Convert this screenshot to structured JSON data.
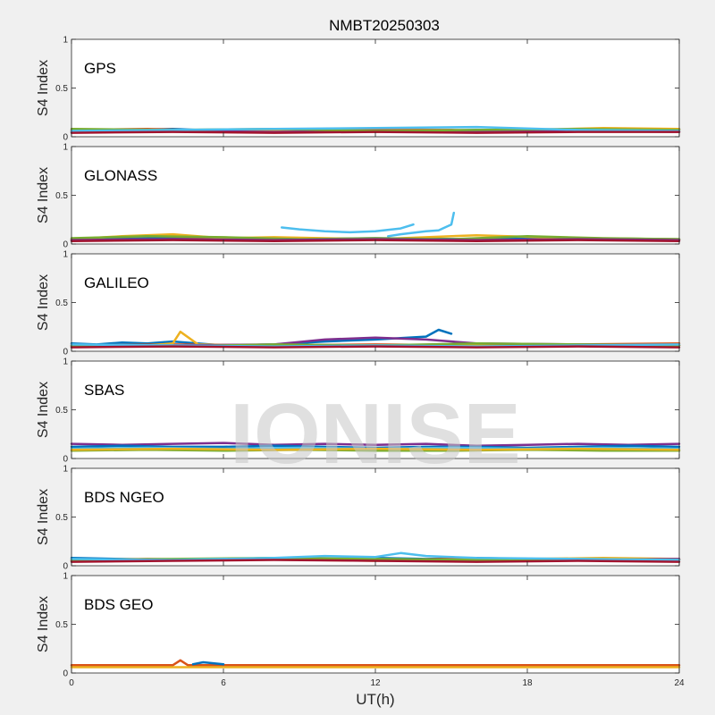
{
  "figure": {
    "title": "NMBT20250303",
    "xlabel": "UT(h)",
    "watermark": "IONISE"
  },
  "chart_data": [
    {
      "type": "line",
      "panel_label": "GPS",
      "ylabel": "S4 Index",
      "xlim": [
        0,
        24
      ],
      "ylim": [
        0,
        1
      ],
      "xticks": [
        0,
        6,
        12,
        18,
        24
      ],
      "yticks": [
        0,
        0.5,
        1
      ],
      "x_tick_labels_shown": false,
      "series": [
        {
          "color": "#0072bd",
          "x": [
            0,
            2,
            4,
            6,
            8,
            10,
            12,
            14,
            16,
            18,
            20,
            22,
            24
          ],
          "y": [
            0.06,
            0.07,
            0.08,
            0.06,
            0.07,
            0.06,
            0.07,
            0.06,
            0.07,
            0.06,
            0.06,
            0.07,
            0.08
          ]
        },
        {
          "color": "#d95319",
          "x": [
            0,
            3,
            6,
            9,
            12,
            15,
            18,
            21,
            24
          ],
          "y": [
            0.07,
            0.08,
            0.06,
            0.08,
            0.07,
            0.07,
            0.06,
            0.08,
            0.07
          ]
        },
        {
          "color": "#edb120",
          "x": [
            0,
            3,
            6,
            9,
            12,
            15,
            18,
            21,
            24
          ],
          "y": [
            0.05,
            0.06,
            0.07,
            0.06,
            0.05,
            0.06,
            0.07,
            0.09,
            0.08
          ]
        },
        {
          "color": "#7e2f8e",
          "x": [
            0,
            4,
            8,
            12,
            16,
            20,
            24
          ],
          "y": [
            0.05,
            0.06,
            0.05,
            0.06,
            0.05,
            0.06,
            0.05
          ]
        },
        {
          "color": "#77ac30",
          "x": [
            0,
            4,
            8,
            12,
            16,
            20,
            24
          ],
          "y": [
            0.08,
            0.07,
            0.08,
            0.06,
            0.07,
            0.08,
            0.07
          ]
        },
        {
          "color": "#4dbeee",
          "x": [
            0,
            4,
            8,
            12,
            16,
            20,
            24
          ],
          "y": [
            0.06,
            0.07,
            0.08,
            0.09,
            0.1,
            0.07,
            0.06
          ]
        },
        {
          "color": "#a2142f",
          "x": [
            0,
            4,
            8,
            12,
            16,
            20,
            24
          ],
          "y": [
            0.04,
            0.05,
            0.04,
            0.05,
            0.04,
            0.05,
            0.05
          ]
        }
      ]
    },
    {
      "type": "line",
      "panel_label": "GLONASS",
      "ylabel": "S4 Index",
      "xlim": [
        0,
        24
      ],
      "ylim": [
        0,
        1
      ],
      "xticks": [
        0,
        6,
        12,
        18,
        24
      ],
      "yticks": [
        0,
        0.5,
        1
      ],
      "x_tick_labels_shown": false,
      "series": [
        {
          "color": "#4dbeee",
          "x": [
            8.3,
            9,
            10,
            11,
            12,
            13,
            13.5
          ],
          "y": [
            0.17,
            0.15,
            0.13,
            0.12,
            0.13,
            0.16,
            0.2
          ]
        },
        {
          "color": "#4dbeee",
          "x": [
            12.5,
            13,
            14,
            14.5,
            15,
            15.1
          ],
          "y": [
            0.08,
            0.1,
            0.13,
            0.14,
            0.2,
            0.32
          ]
        },
        {
          "color": "#0072bd",
          "x": [
            0,
            4,
            8,
            12,
            16,
            20,
            24
          ],
          "y": [
            0.05,
            0.06,
            0.05,
            0.06,
            0.05,
            0.06,
            0.05
          ]
        },
        {
          "color": "#d95319",
          "x": [
            0,
            4,
            8,
            12,
            16,
            20,
            24
          ],
          "y": [
            0.04,
            0.05,
            0.06,
            0.05,
            0.04,
            0.05,
            0.04
          ]
        },
        {
          "color": "#edb120",
          "x": [
            0,
            2,
            4,
            6,
            8,
            12,
            16,
            20,
            24
          ],
          "y": [
            0.05,
            0.08,
            0.1,
            0.06,
            0.07,
            0.05,
            0.09,
            0.06,
            0.05
          ]
        },
        {
          "color": "#77ac30",
          "x": [
            0,
            3,
            6,
            9,
            12,
            15,
            18,
            21,
            24
          ],
          "y": [
            0.06,
            0.08,
            0.07,
            0.05,
            0.06,
            0.05,
            0.08,
            0.06,
            0.05
          ]
        },
        {
          "color": "#7e2f8e",
          "x": [
            0,
            4,
            8,
            12,
            16,
            20,
            24
          ],
          "y": [
            0.04,
            0.05,
            0.04,
            0.05,
            0.04,
            0.05,
            0.04
          ]
        },
        {
          "color": "#a2142f",
          "x": [
            0,
            4,
            8,
            12,
            16,
            20,
            24
          ],
          "y": [
            0.03,
            0.04,
            0.03,
            0.04,
            0.03,
            0.04,
            0.03
          ]
        }
      ]
    },
    {
      "type": "line",
      "panel_label": "GALILEO",
      "ylabel": "S4 Index",
      "xlim": [
        0,
        24
      ],
      "ylim": [
        0,
        1
      ],
      "xticks": [
        0,
        6,
        12,
        18,
        24
      ],
      "yticks": [
        0,
        0.5,
        1
      ],
      "x_tick_labels_shown": false,
      "series": [
        {
          "color": "#0072bd",
          "x": [
            0,
            1,
            2,
            3,
            4,
            6,
            8,
            10,
            12,
            14,
            14.5,
            15
          ],
          "y": [
            0.08,
            0.07,
            0.09,
            0.08,
            0.1,
            0.06,
            0.07,
            0.1,
            0.12,
            0.15,
            0.22,
            0.18
          ]
        },
        {
          "color": "#d95319",
          "x": [
            0,
            4,
            8,
            12,
            16,
            20,
            24
          ],
          "y": [
            0.06,
            0.07,
            0.06,
            0.07,
            0.06,
            0.07,
            0.08
          ]
        },
        {
          "color": "#edb120",
          "x": [
            0,
            3,
            4,
            4.3,
            5,
            8,
            12,
            16,
            20,
            24
          ],
          "y": [
            0.05,
            0.06,
            0.08,
            0.2,
            0.07,
            0.06,
            0.06,
            0.07,
            0.06,
            0.06
          ]
        },
        {
          "color": "#7e2f8e",
          "x": [
            0,
            4,
            8,
            10,
            12,
            14,
            16,
            20,
            24
          ],
          "y": [
            0.05,
            0.06,
            0.07,
            0.12,
            0.14,
            0.12,
            0.08,
            0.07,
            0.06
          ]
        },
        {
          "color": "#77ac30",
          "x": [
            0,
            4,
            8,
            12,
            16,
            20,
            24
          ],
          "y": [
            0.06,
            0.05,
            0.07,
            0.06,
            0.08,
            0.07,
            0.06
          ]
        },
        {
          "color": "#4dbeee",
          "x": [
            0,
            4,
            8,
            12,
            16,
            20,
            24
          ],
          "y": [
            0.07,
            0.06,
            0.05,
            0.06,
            0.05,
            0.06,
            0.07
          ]
        },
        {
          "color": "#a2142f",
          "x": [
            0,
            4,
            8,
            12,
            16,
            20,
            24
          ],
          "y": [
            0.04,
            0.05,
            0.04,
            0.05,
            0.04,
            0.05,
            0.04
          ]
        }
      ]
    },
    {
      "type": "line",
      "panel_label": "SBAS",
      "ylabel": "S4 Index",
      "xlim": [
        0,
        24
      ],
      "ylim": [
        0,
        1
      ],
      "xticks": [
        0,
        6,
        12,
        18,
        24
      ],
      "yticks": [
        0,
        0.5,
        1
      ],
      "x_tick_labels_shown": false,
      "series": [
        {
          "color": "#7e2f8e",
          "x": [
            0,
            2,
            4,
            6,
            8,
            10,
            12,
            14,
            16,
            18,
            20,
            22,
            24
          ],
          "y": [
            0.15,
            0.14,
            0.15,
            0.16,
            0.14,
            0.15,
            0.14,
            0.15,
            0.13,
            0.14,
            0.15,
            0.14,
            0.15
          ]
        },
        {
          "color": "#0072bd",
          "x": [
            0,
            2,
            4,
            6,
            8,
            10,
            12,
            14,
            16,
            18,
            20,
            22,
            24
          ],
          "y": [
            0.12,
            0.13,
            0.12,
            0.12,
            0.13,
            0.12,
            0.11,
            0.12,
            0.12,
            0.11,
            0.12,
            0.13,
            0.12
          ]
        },
        {
          "color": "#4dbeee",
          "x": [
            0,
            3,
            6,
            9,
            12,
            15,
            18,
            21,
            24
          ],
          "y": [
            0.1,
            0.11,
            0.1,
            0.11,
            0.1,
            0.11,
            0.1,
            0.11,
            0.1
          ]
        },
        {
          "color": "#77ac30",
          "x": [
            0,
            3,
            6,
            9,
            12,
            15,
            18,
            21,
            24
          ],
          "y": [
            0.08,
            0.09,
            0.08,
            0.09,
            0.08,
            0.08,
            0.09,
            0.08,
            0.08
          ]
        },
        {
          "color": "#edb120",
          "x": [
            0,
            4,
            8,
            12,
            16,
            20,
            24
          ],
          "y": [
            0.09,
            0.1,
            0.09,
            0.1,
            0.09,
            0.1,
            0.09
          ]
        }
      ]
    },
    {
      "type": "line",
      "panel_label": "BDS NGEO",
      "ylabel": "S4 Index",
      "xlim": [
        0,
        24
      ],
      "ylim": [
        0,
        1
      ],
      "xticks": [
        0,
        6,
        12,
        18,
        24
      ],
      "yticks": [
        0,
        0.5,
        1
      ],
      "x_tick_labels_shown": false,
      "series": [
        {
          "color": "#0072bd",
          "x": [
            0,
            2,
            4,
            6,
            8,
            10,
            12,
            14,
            16,
            18,
            20,
            22,
            24
          ],
          "y": [
            0.08,
            0.07,
            0.06,
            0.07,
            0.08,
            0.07,
            0.08,
            0.07,
            0.08,
            0.07,
            0.06,
            0.07,
            0.06
          ]
        },
        {
          "color": "#d95319",
          "x": [
            0,
            3,
            6,
            9,
            12,
            15,
            18,
            21,
            24
          ],
          "y": [
            0.06,
            0.07,
            0.06,
            0.07,
            0.06,
            0.07,
            0.06,
            0.07,
            0.06
          ]
        },
        {
          "color": "#edb120",
          "x": [
            0,
            3,
            6,
            9,
            12,
            15,
            18,
            21,
            24
          ],
          "y": [
            0.05,
            0.06,
            0.07,
            0.06,
            0.05,
            0.06,
            0.07,
            0.08,
            0.07
          ]
        },
        {
          "color": "#7e2f8e",
          "x": [
            0,
            4,
            8,
            12,
            16,
            20,
            24
          ],
          "y": [
            0.05,
            0.06,
            0.07,
            0.06,
            0.05,
            0.06,
            0.07
          ]
        },
        {
          "color": "#77ac30",
          "x": [
            0,
            4,
            8,
            12,
            16,
            20,
            24
          ],
          "y": [
            0.06,
            0.07,
            0.08,
            0.07,
            0.06,
            0.07,
            0.06
          ]
        },
        {
          "color": "#4dbeee",
          "x": [
            0,
            4,
            8,
            10,
            12,
            13,
            14,
            16,
            20,
            24
          ],
          "y": [
            0.07,
            0.06,
            0.08,
            0.1,
            0.09,
            0.13,
            0.1,
            0.08,
            0.07,
            0.06
          ]
        },
        {
          "color": "#a2142f",
          "x": [
            0,
            4,
            8,
            12,
            16,
            20,
            24
          ],
          "y": [
            0.04,
            0.05,
            0.06,
            0.05,
            0.04,
            0.05,
            0.04
          ]
        }
      ]
    },
    {
      "type": "line",
      "panel_label": "BDS GEO",
      "ylabel": "S4 Index",
      "xlim": [
        0,
        24
      ],
      "ylim": [
        0,
        1
      ],
      "xticks": [
        0,
        6,
        12,
        18,
        24
      ],
      "yticks": [
        0,
        0.5,
        1
      ],
      "x_tick_labels_shown": true,
      "series": [
        {
          "color": "#d95319",
          "x": [
            0,
            2,
            4,
            4.3,
            4.6,
            6,
            8,
            10,
            12,
            14,
            16,
            18,
            20,
            22,
            24
          ],
          "y": [
            0.08,
            0.08,
            0.08,
            0.13,
            0.08,
            0.08,
            0.08,
            0.08,
            0.08,
            0.08,
            0.08,
            0.08,
            0.08,
            0.08,
            0.08
          ]
        },
        {
          "color": "#edb120",
          "x": [
            0,
            4,
            8,
            12,
            16,
            20,
            24
          ],
          "y": [
            0.06,
            0.06,
            0.06,
            0.06,
            0.06,
            0.06,
            0.06
          ]
        },
        {
          "color": "#0072bd",
          "x": [
            4.8,
            5.2,
            5.6,
            6
          ],
          "y": [
            0.09,
            0.11,
            0.1,
            0.09
          ]
        }
      ]
    }
  ]
}
